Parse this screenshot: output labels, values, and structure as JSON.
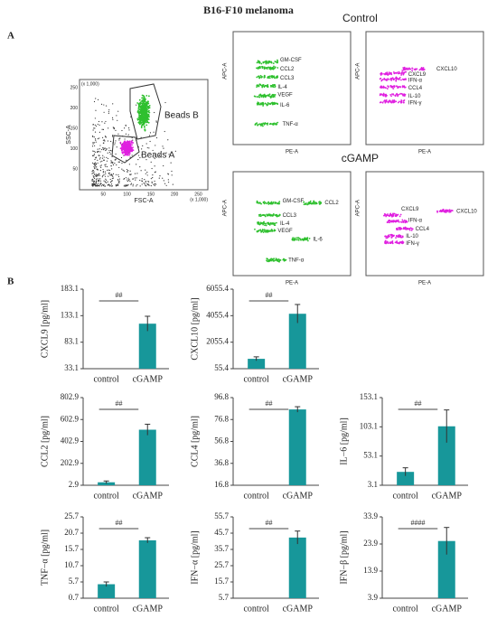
{
  "title": "B16-F10 melanoma",
  "panel_labels": [
    "A",
    "B"
  ],
  "flow": {
    "scatter": {
      "x_label": "FSC-A",
      "y_label": "SSC-A",
      "gates": [
        "Beads B",
        "Beads A"
      ],
      "ticks": [
        "50",
        "100",
        "150",
        "200",
        "250"
      ],
      "scale_note": "(x 1,000)"
    },
    "plots": [
      {
        "condition": "Control",
        "x_label": "PE-A",
        "y_label": "APC-A",
        "clusters": [
          "GM-CSF",
          "CCL2",
          "CCL3",
          "IL-4",
          "VEGF",
          "IL-6",
          "TNF-α"
        ]
      },
      {
        "x_label": "PE-A",
        "y_label": "APC-A",
        "clusters": [
          "CXCL10",
          "CXCL9",
          "IFN-α",
          "CCL4",
          "IL-10",
          "IFN-γ"
        ]
      },
      {
        "condition": "cGAMP",
        "x_label": "PE-A",
        "y_label": "APC-A",
        "clusters": [
          "GM-CSF",
          "CCL2",
          "CCL3",
          "IL-4",
          "VEGF",
          "IL-6",
          "TNF-α"
        ]
      },
      {
        "x_label": "PE-A",
        "y_label": "APC-A",
        "clusters": [
          "CXCL9",
          "CXCL10",
          "IFN-α",
          "CCL4",
          "IL-10",
          "IFN-γ"
        ]
      }
    ]
  },
  "chart_data": [
    {
      "type": "bar",
      "ylabel": "CXCL9 [pg/ml]",
      "categories": [
        "control",
        "cGAMP"
      ],
      "values": [
        33.1,
        118
      ],
      "errors": [
        0,
        14
      ],
      "color": "#17979a",
      "ylim": [
        33.1,
        183.1
      ],
      "yticks": [
        33.1,
        83.1,
        133.1,
        183.1
      ],
      "annotation": "##"
    },
    {
      "type": "bar",
      "ylabel": "CXCL10 [pg/ml]",
      "categories": [
        "control",
        "cGAMP"
      ],
      "values": [
        800,
        4200
      ],
      "errors": [
        150,
        700
      ],
      "color": "#17979a",
      "ylim": [
        55.4,
        6055.4
      ],
      "yticks": [
        55.4,
        2055.4,
        4055.4,
        6055.4
      ],
      "annotation": "##"
    },
    {
      "type": "bar",
      "ylabel": "CCL2 [pg/ml]",
      "categories": [
        "control",
        "cGAMP"
      ],
      "values": [
        30,
        510
      ],
      "errors": [
        12,
        50
      ],
      "color": "#17979a",
      "ylim": [
        2.9,
        802.9
      ],
      "yticks": [
        2.9,
        202.9,
        402.9,
        602.9,
        802.9
      ],
      "annotation": "##"
    },
    {
      "type": "bar",
      "ylabel": "CCL4 [pg/ml]",
      "categories": [
        "control",
        "cGAMP"
      ],
      "values": [
        16.8,
        86
      ],
      "errors": [
        0,
        2.5
      ],
      "color": "#17979a",
      "ylim": [
        16.8,
        96.8
      ],
      "yticks": [
        16.8,
        36.8,
        56.8,
        76.8,
        96.8
      ],
      "annotation": "##"
    },
    {
      "type": "bar",
      "ylabel": "IL−6 [pg/ml]",
      "categories": [
        "control",
        "cGAMP"
      ],
      "values": [
        26,
        104
      ],
      "errors": [
        7,
        28
      ],
      "color": "#17979a",
      "ylim": [
        3.1,
        153.1
      ],
      "yticks": [
        3.1,
        53.1,
        103.1,
        153.1
      ],
      "annotation": "##"
    },
    {
      "type": "bar",
      "ylabel": "TNF−α [pg/ml]",
      "categories": [
        "control",
        "cGAMP"
      ],
      "values": [
        5,
        18.5
      ],
      "errors": [
        0.7,
        0.8
      ],
      "color": "#17979a",
      "ylim": [
        0.7,
        25.7
      ],
      "yticks": [
        0.7,
        5.7,
        10.7,
        15.7,
        20.7,
        25.7
      ],
      "annotation": "##"
    },
    {
      "type": "bar",
      "ylabel": "IFN−α [pg/ml]",
      "categories": [
        "control",
        "cGAMP"
      ],
      "values": [
        5.7,
        43
      ],
      "errors": [
        0,
        4
      ],
      "color": "#17979a",
      "ylim": [
        5.7,
        55.7
      ],
      "yticks": [
        5.7,
        15.7,
        25.7,
        35.7,
        45.7,
        55.7
      ],
      "annotation": "##"
    },
    {
      "type": "bar",
      "ylabel": "IFN−β [pg/ml]",
      "categories": [
        "control",
        "cGAMP"
      ],
      "values": [
        3.9,
        25
      ],
      "errors": [
        0,
        5
      ],
      "color": "#17979a",
      "ylim": [
        3.9,
        33.9
      ],
      "yticks": [
        3.9,
        13.9,
        23.9,
        33.9
      ],
      "annotation": "####"
    }
  ]
}
